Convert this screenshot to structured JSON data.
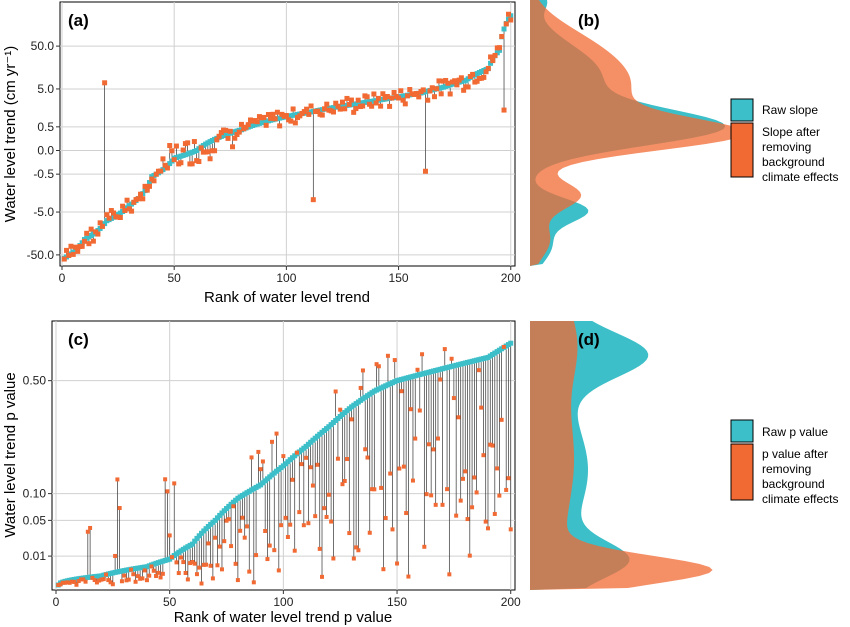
{
  "colors": {
    "raw": "#3CBFC8",
    "adjusted": "#F26A33",
    "overlap": "#C8683E",
    "grid": "#d0d0d0",
    "stem": "#333333"
  },
  "chart_data": [
    {
      "panel": "(a)",
      "type": "scatter",
      "xlabel": "Rank of water level trend",
      "ylabel": "Water level trend (cm yr⁻¹)",
      "xlim": [
        0,
        201
      ],
      "x_ticks": [
        0,
        50,
        100,
        150,
        200
      ],
      "y_scale": "pseudo-log (signed)",
      "y_ticks": [
        -50.0,
        -5.0,
        -0.5,
        0.0,
        0.5,
        5.0,
        50.0
      ],
      "y_tick_labels": [
        "-50.0",
        "-5.0",
        "-0.5",
        "0.0",
        "0.5",
        "5.0",
        "50.0"
      ],
      "grid": true,
      "series": [
        {
          "name": "Raw slope",
          "color": "#3CBFC8",
          "x": [
            1,
            10,
            20,
            30,
            40,
            50,
            60,
            70,
            80,
            90,
            100,
            110,
            120,
            130,
            140,
            150,
            160,
            170,
            180,
            190,
            195,
            200
          ],
          "y": [
            -60,
            -22,
            -8,
            -3.5,
            -0.6,
            -0.1,
            0.0,
            0.2,
            0.4,
            0.7,
            1.0,
            1.3,
            1.7,
            2.1,
            2.6,
            3.2,
            4.0,
            5.5,
            8,
            15,
            40,
            250
          ]
        },
        {
          "name": "Slope after removing background climate effects",
          "color": "#F26A33",
          "x": [
            1,
            5,
            10,
            15,
            19,
            22,
            30,
            35,
            40,
            50,
            55,
            60,
            70,
            80,
            90,
            100,
            110,
            112,
            120,
            130,
            140,
            150,
            160,
            162,
            170,
            180,
            190,
            195
          ],
          "y": [
            -80,
            -25,
            -15,
            -3,
            7,
            -8,
            -3,
            -1.5,
            -0.3,
            0.2,
            0.6,
            0.1,
            0.3,
            0.5,
            0.8,
            1.0,
            1.4,
            -2.5,
            1.8,
            2.2,
            2.7,
            3.3,
            4.5,
            -0.4,
            5.2,
            9,
            20,
            1.5
          ]
        }
      ]
    },
    {
      "panel": "(b)",
      "type": "area",
      "description_of_axes": "density of water level trend, same y axis as (a)",
      "series": [
        {
          "name": "Raw slope",
          "color": "#3CBFC8"
        },
        {
          "name": "Slope after removing background climate effects",
          "color": "#F26A33"
        }
      ]
    },
    {
      "panel": "(c)",
      "type": "scatter",
      "xlabel": "Rank of water level trend p value",
      "ylabel": "Water level trend p value",
      "xlim": [
        0,
        201
      ],
      "x_ticks": [
        0,
        50,
        100,
        150,
        200
      ],
      "y_scale": "sqrt",
      "y_ticks": [
        0.01,
        0.05,
        0.1,
        0.5
      ],
      "y_tick_labels": [
        "0.01",
        "0.05",
        "0.10",
        "0.50"
      ],
      "grid": true,
      "series": [
        {
          "name": "Raw p value",
          "color": "#3CBFC8",
          "x": [
            1,
            20,
            40,
            50,
            60,
            70,
            80,
            90,
            100,
            110,
            120,
            130,
            140,
            150,
            160,
            170,
            180,
            190,
            200
          ],
          "y": [
            0.0,
            0.001,
            0.004,
            0.008,
            0.02,
            0.05,
            0.09,
            0.12,
            0.17,
            0.23,
            0.3,
            0.38,
            0.45,
            0.5,
            0.53,
            0.56,
            0.59,
            0.62,
            0.7
          ]
        },
        {
          "name": "p value after removing background climate effects",
          "color": "#F26A33",
          "x": [
            5,
            20,
            30,
            40,
            45,
            55,
            60,
            70,
            75,
            80,
            90,
            100,
            110,
            115,
            120,
            127,
            130,
            140,
            147,
            150,
            160,
            165,
            170,
            180,
            190,
            195,
            200
          ],
          "y": [
            0.0,
            0.001,
            0.002,
            0.005,
            0.05,
            0.01,
            0.02,
            0.08,
            0.12,
            0.02,
            0.1,
            0.05,
            0.15,
            0.02,
            0.3,
            0.62,
            0.25,
            0.45,
            0.6,
            0.03,
            0.35,
            0.1,
            0.45,
            0.25,
            0.05,
            0.52,
            0.02
          ]
        }
      ]
    },
    {
      "panel": "(d)",
      "type": "area",
      "description_of_axes": "density of p value, same y axis as (c)",
      "series": [
        {
          "name": "Raw p value",
          "color": "#3CBFC8"
        },
        {
          "name": "p value after removing background climate effects",
          "color": "#F26A33"
        }
      ]
    }
  ],
  "legend_b": [
    "Raw slope",
    [
      "Slope after",
      "removing",
      "background",
      "climate effects"
    ]
  ],
  "legend_d": [
    "Raw p value",
    [
      "p value after",
      "removing",
      "background",
      "climate effects"
    ]
  ]
}
